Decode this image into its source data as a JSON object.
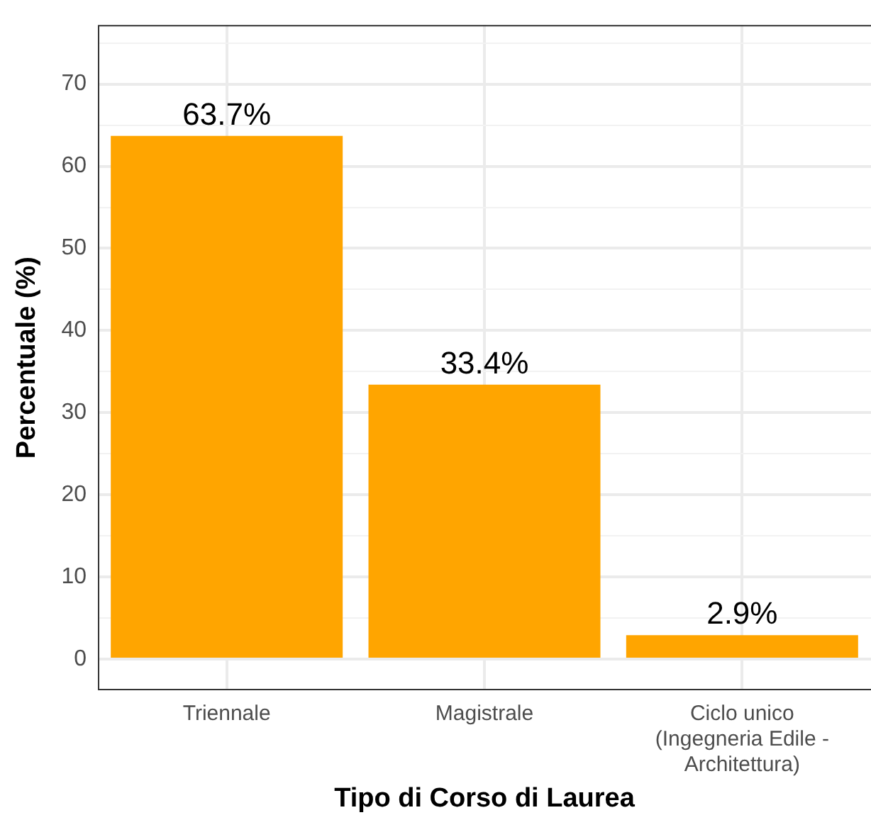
{
  "chart_data": {
    "type": "bar",
    "xlabel": "Tipo di Corso di Laurea",
    "ylabel": "Percentuale (%)",
    "categories": [
      "Triennale",
      "Magistrale",
      "Ciclo unico\n(Ingegneria Edile -\nArchitettura)"
    ],
    "values": [
      63.7,
      33.4,
      2.9
    ],
    "color": "#ffa500",
    "value_labels": [
      "63.7%",
      "33.4%",
      "2.9%"
    ],
    "ylim": [
      -3.8,
      77.2
    ],
    "yticks": [
      0,
      {
        "value": 5,
        "label": null
      },
      10,
      {
        "value": 15,
        "label": null
      },
      20,
      {
        "value": 25,
        "label": null
      },
      30,
      {
        "value": 35,
        "label": null
      },
      40,
      {
        "value": 45,
        "label": null
      },
      50,
      {
        "value": 55,
        "label": null
      },
      60,
      {
        "value": 65,
        "label": null
      },
      70,
      {
        "value": 75,
        "label": null
      }
    ],
    "grid": true,
    "legend": false
  }
}
